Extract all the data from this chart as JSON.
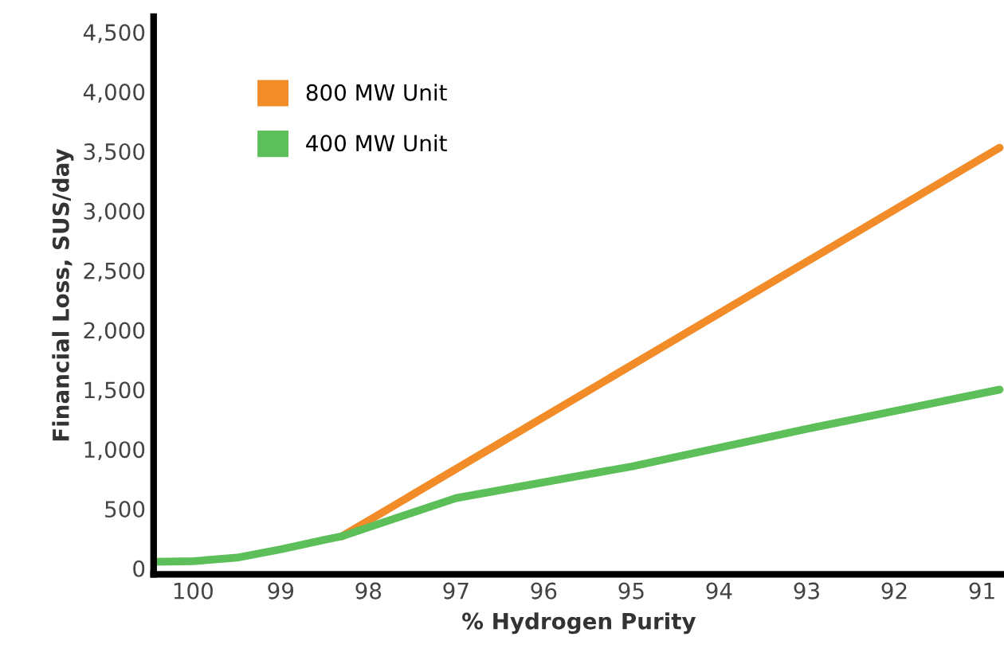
{
  "chart_data": {
    "type": "line",
    "xlabel": "% Hydrogen Purity",
    "ylabel": "Financial Loss, SUS/day",
    "xlim": [
      100.45,
      90.75
    ],
    "xticks": [
      100,
      99,
      98,
      97,
      96,
      95,
      94,
      93,
      92,
      91
    ],
    "ylim": [
      -50,
      4630
    ],
    "yticks": [
      {
        "value": 0,
        "label": "0"
      },
      {
        "value": 500,
        "label": "500"
      },
      {
        "value": 1000,
        "label": "1,000"
      },
      {
        "value": 1500,
        "label": "1,500"
      },
      {
        "value": 2000,
        "label": "2,000"
      },
      {
        "value": 2500,
        "label": "2,500"
      },
      {
        "value": 3000,
        "label": "3,000"
      },
      {
        "value": 3500,
        "label": "3,500"
      },
      {
        "value": 4000,
        "label": "4,000"
      },
      {
        "value": 4500,
        "label": "4,500"
      }
    ],
    "grid": false,
    "legend": "top left",
    "marker": "none",
    "line_style": "solid",
    "series": [
      {
        "name": "800 MW Unit",
        "color": "#f28c28",
        "x": [
          98.3,
          90.8
        ],
        "values": [
          270,
          3530
        ]
      },
      {
        "name": "400 MW Unit",
        "color": "#5cbf5a",
        "x": [
          100.45,
          100,
          99.5,
          99,
          98.5,
          98.3,
          97,
          95,
          93,
          90.8
        ],
        "values": [
          55,
          60,
          90,
          160,
          240,
          270,
          590,
          855,
          1170,
          1500
        ]
      }
    ]
  }
}
